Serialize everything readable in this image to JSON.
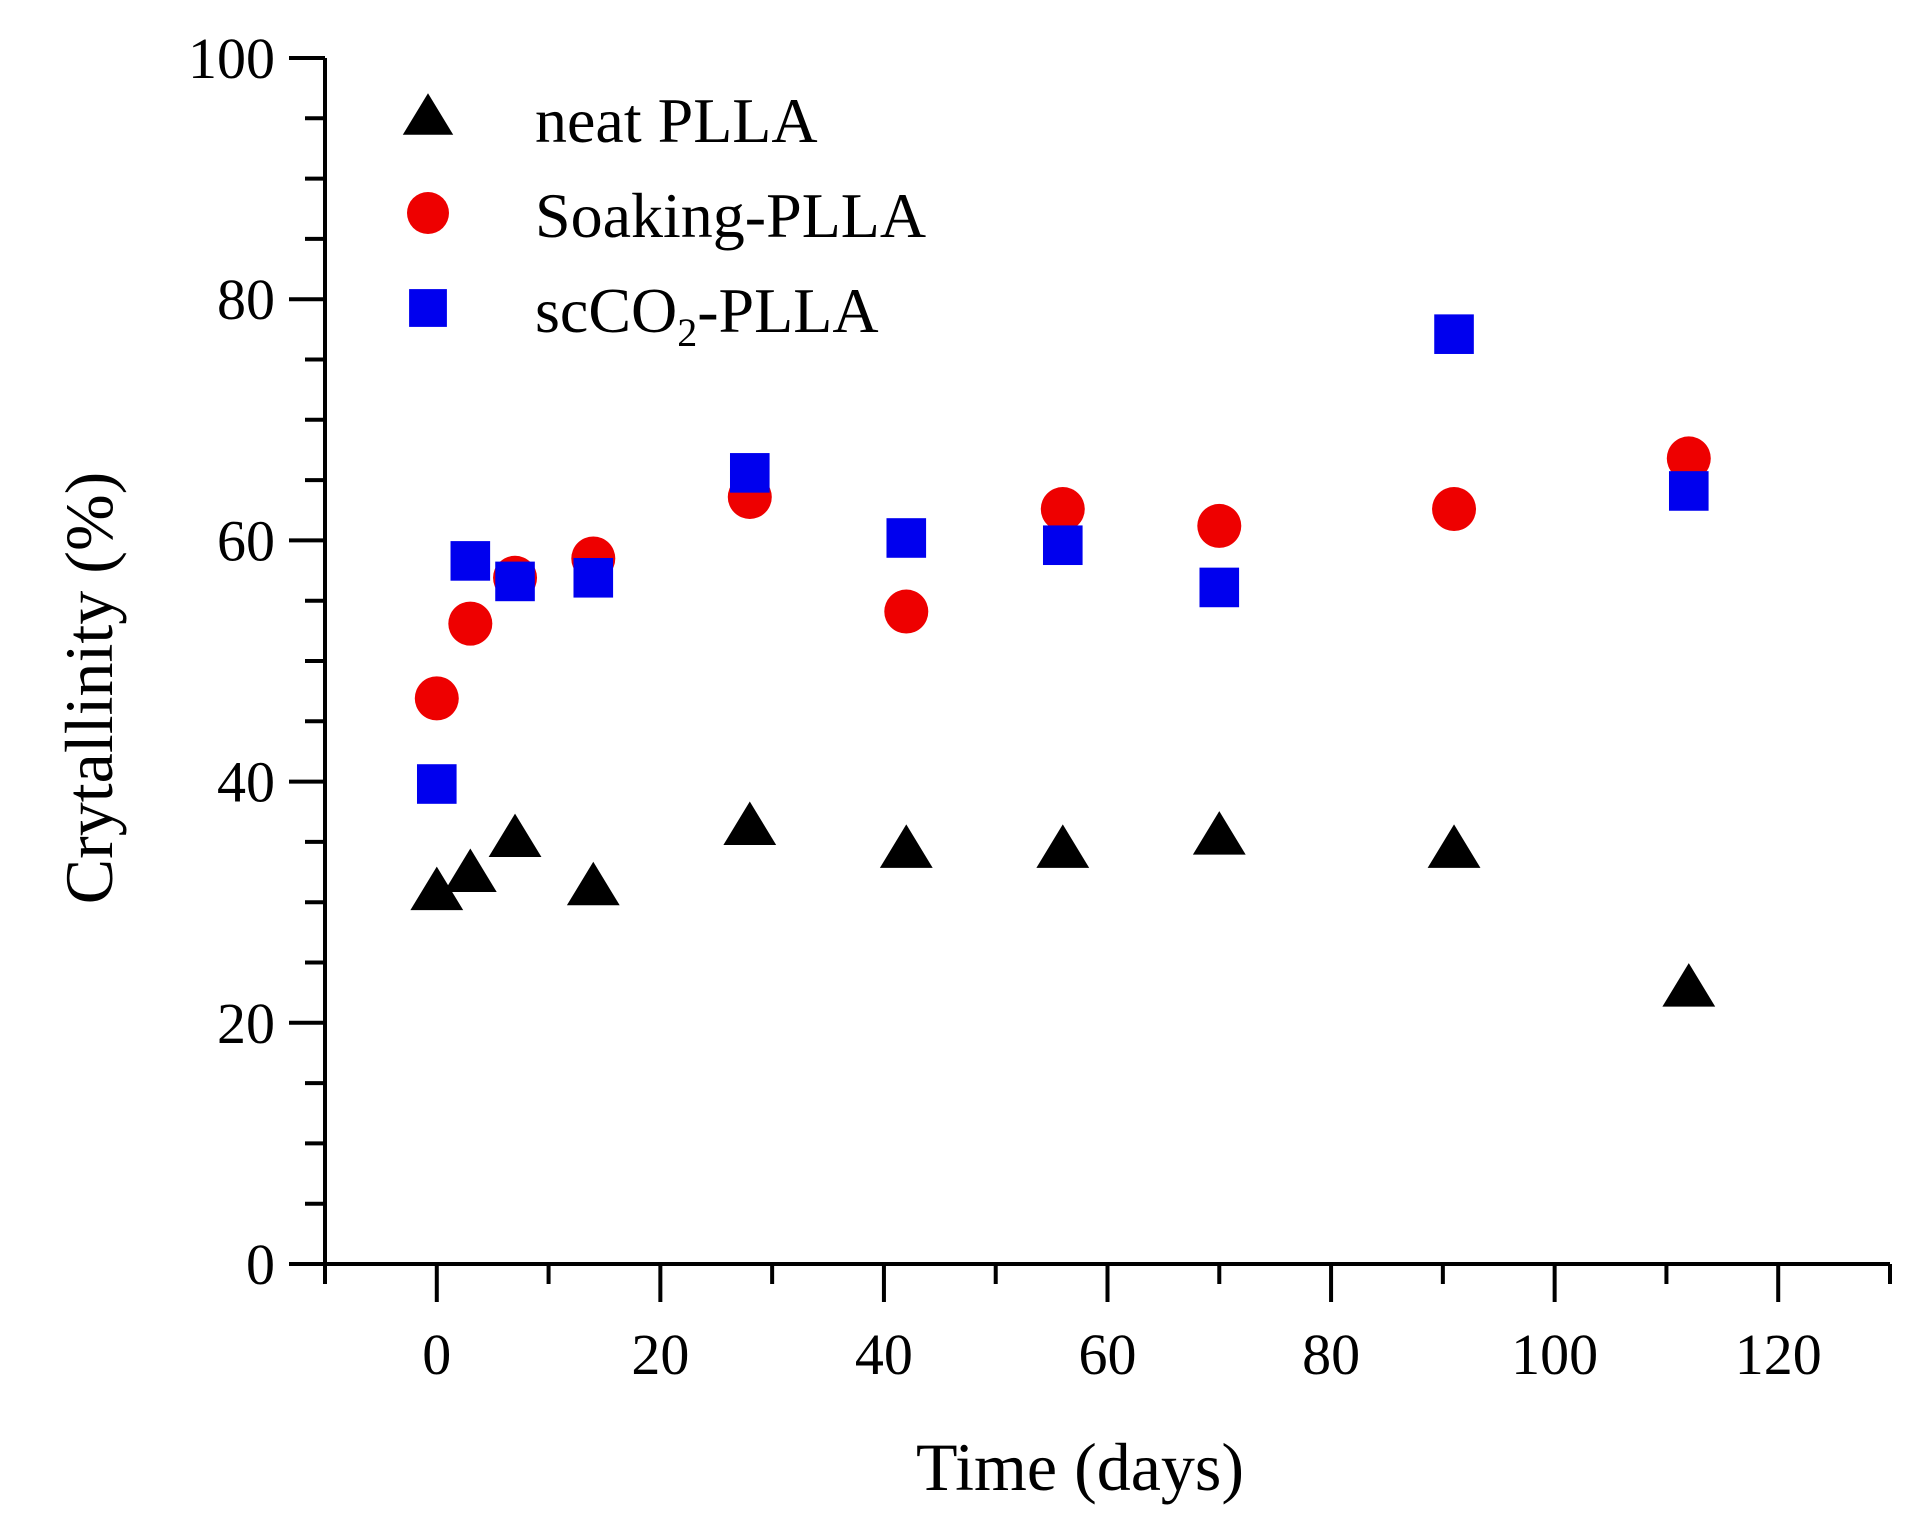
{
  "chart_data": {
    "type": "scatter",
    "title": "",
    "xlabel": "Time (days)",
    "ylabel": "Crytallinity (%)",
    "xlim": [
      -10,
      130
    ],
    "ylim": [
      0,
      100
    ],
    "x_ticks": [
      0,
      20,
      40,
      60,
      80,
      100,
      120
    ],
    "y_ticks": [
      0,
      20,
      40,
      60,
      80,
      100
    ],
    "grid": false,
    "legend_position": "top-left",
    "series": [
      {
        "name": "neat PLLA",
        "label_main": "neat PLLA",
        "label_sub": "",
        "label_tail": "",
        "marker": "triangle",
        "color": "#000000",
        "x": [
          0,
          3,
          7,
          14,
          28,
          42,
          56,
          70,
          91,
          112
        ],
        "values": [
          30.8,
          32.3,
          35.2,
          31.2,
          36.2,
          34.3,
          34.3,
          35.4,
          34.3,
          22.8
        ]
      },
      {
        "name": "Soaking-PLLA",
        "label_main": "Soaking-PLLA",
        "label_sub": "",
        "label_tail": "",
        "marker": "circle",
        "color": "#ee0000",
        "x": [
          0,
          3,
          7,
          14,
          28,
          42,
          56,
          70,
          91,
          112
        ],
        "values": [
          46.9,
          53.1,
          56.9,
          58.5,
          63.6,
          54.1,
          62.6,
          61.2,
          62.6,
          66.8
        ]
      },
      {
        "name": "scCO2-PLLA",
        "label_main": "scCO",
        "label_sub": "2",
        "label_tail": "-PLLA",
        "marker": "square",
        "color": "#0000ee",
        "x": [
          0,
          3,
          7,
          14,
          28,
          42,
          56,
          70,
          91,
          112
        ],
        "values": [
          39.8,
          58.3,
          56.6,
          56.9,
          65.6,
          60.2,
          59.6,
          56.1,
          77.1,
          64.1
        ]
      }
    ]
  }
}
